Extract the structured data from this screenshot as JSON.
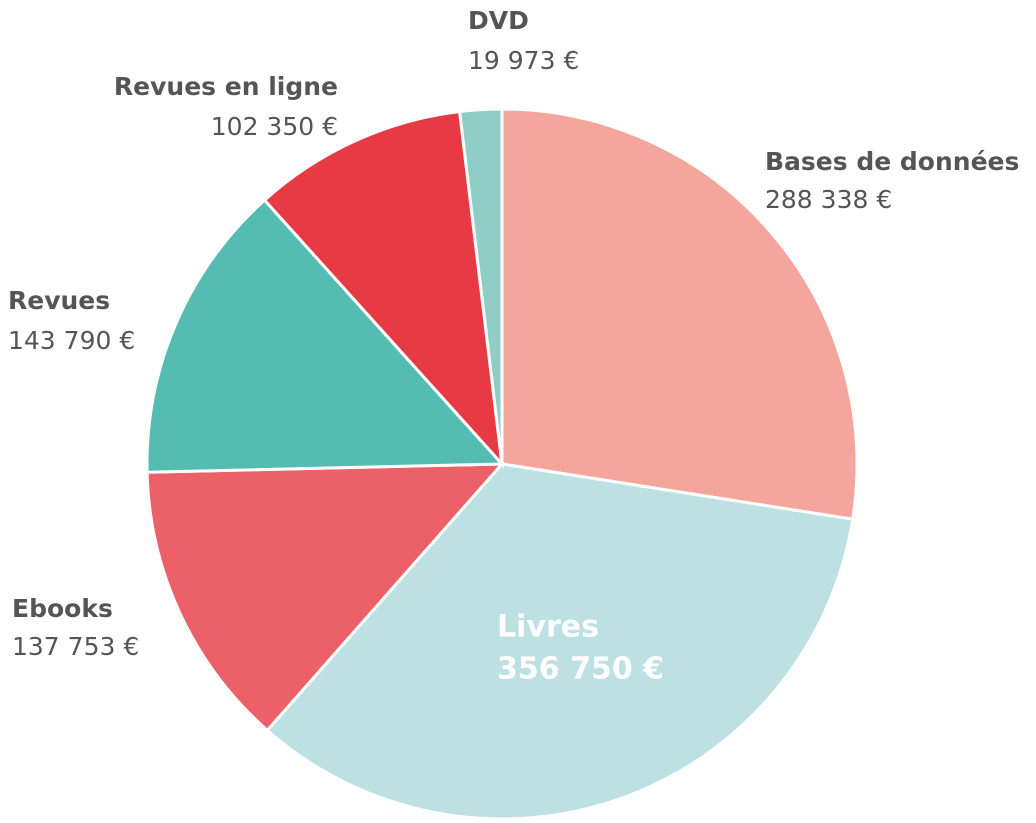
{
  "chart_data": {
    "type": "pie",
    "categories": [
      "Bases de données",
      "Livres",
      "Ebooks",
      "Revues",
      "Revues en ligne",
      "DVD"
    ],
    "values": [
      288338,
      356750,
      137753,
      143790,
      102350,
      19973
    ],
    "value_labels": [
      "288 338 €",
      "356 750 €",
      "137 753 €",
      "143 790 €",
      "102 350 €",
      "19 973 €"
    ],
    "colors": [
      "#f4a69c",
      "#bde0e3",
      "#eb6167",
      "#54bcb1",
      "#e83a45",
      "#8fcdc6"
    ]
  }
}
